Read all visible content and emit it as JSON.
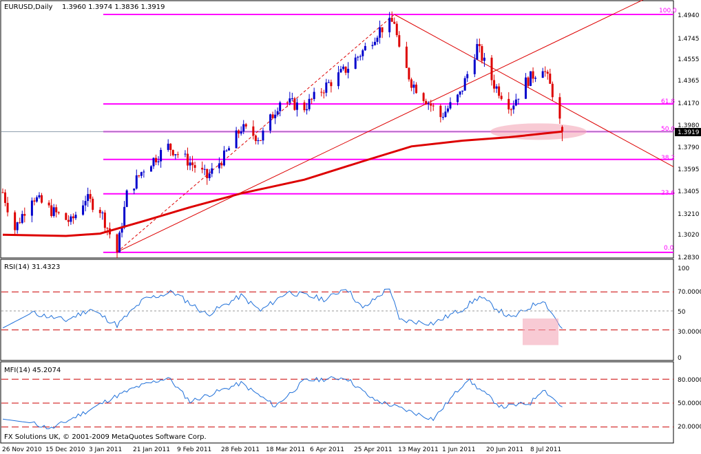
{
  "header": {
    "symbol_text": "EURUSD,Daily",
    "ohlc_text": "1.3960 1.3974 1.3836 1.3919"
  },
  "price_panel": {
    "y_ticks": [
      "1.4940",
      "1.4745",
      "1.4555",
      "1.4365",
      "1.4170",
      "1.3980",
      "1.3790",
      "1.3595",
      "1.3405",
      "1.3210",
      "1.3020",
      "1.2830"
    ],
    "current_price_label": "1.3919",
    "fib_labels": [
      "100.0",
      "61.8",
      "50.0",
      "38.2",
      "23.6",
      "0.0"
    ]
  },
  "rsi_panel": {
    "title": "RSI(14) 31.4323",
    "y_ticks": [
      "100",
      "70.0000",
      "50",
      "30.0000",
      "0"
    ]
  },
  "mfi_panel": {
    "title": "MFI(14) 45.2074",
    "y_ticks": [
      "80.0000",
      "50.0000",
      "20.0000"
    ],
    "copyright": "FX Solutions UK, © 2001-2009 MetaQuotes Software Corp."
  },
  "x_axis": {
    "labels": [
      "26 Nov 2010",
      "15 Dec 2010",
      "3 Jan 2011",
      "21 Jan 2011",
      "9 Feb 2011",
      "28 Feb 2011",
      "18 Mar 2011",
      "6 Apr 2011",
      "25 Apr 2011",
      "13 May 2011",
      "1 Jun 2011",
      "20 Jun 2011",
      "8 Jul 2011"
    ]
  },
  "colors": {
    "bull_candle": "#0000cc",
    "bear_candle": "#dd0000",
    "ma_line": "#dd0000",
    "fib_lines": "#ff00ff",
    "oscillator_line": "#1e6fd9",
    "level_lines": "#cc0000",
    "highlight_zone": "#f4a6b8"
  },
  "chart_data": [
    {
      "type": "candlestick",
      "title": "EURUSD,Daily",
      "ohlc_last": {
        "open": 1.396,
        "high": 1.3974,
        "low": 1.3836,
        "close": 1.3919
      },
      "ylim": [
        1.283,
        1.494
      ],
      "x_start": "2010-11-24",
      "x_end": "2011-07-13",
      "fibonacci_levels": [
        {
          "label": "100.0",
          "price": 1.494
        },
        {
          "label": "61.8",
          "price": 1.416
        },
        {
          "label": "50.0",
          "price": 1.3919
        },
        {
          "label": "38.2",
          "price": 1.3677
        },
        {
          "label": "23.6",
          "price": 1.3377
        },
        {
          "label": "0.0",
          "price": 1.2867
        }
      ],
      "close_path": [
        {
          "date": "2010-11-24",
          "close": 1.339
        },
        {
          "date": "2010-11-29",
          "close": 1.307
        },
        {
          "date": "2010-12-06",
          "close": 1.336
        },
        {
          "date": "2010-12-14",
          "close": 1.323
        },
        {
          "date": "2010-12-22",
          "close": 1.313
        },
        {
          "date": "2010-12-28",
          "close": 1.334
        },
        {
          "date": "2011-01-03",
          "close": 1.324
        },
        {
          "date": "2011-01-10",
          "close": 1.287
        },
        {
          "date": "2011-01-14",
          "close": 1.337
        },
        {
          "date": "2011-01-21",
          "close": 1.36
        },
        {
          "date": "2011-01-31",
          "close": 1.379
        },
        {
          "date": "2011-02-09",
          "close": 1.365
        },
        {
          "date": "2011-02-16",
          "close": 1.352
        },
        {
          "date": "2011-02-23",
          "close": 1.37
        },
        {
          "date": "2011-03-02",
          "close": 1.395
        },
        {
          "date": "2011-03-10",
          "close": 1.386
        },
        {
          "date": "2011-03-18",
          "close": 1.419
        },
        {
          "date": "2011-03-28",
          "close": 1.413
        },
        {
          "date": "2011-04-06",
          "close": 1.432
        },
        {
          "date": "2011-04-14",
          "close": 1.446
        },
        {
          "date": "2011-04-21",
          "close": 1.462
        },
        {
          "date": "2011-04-28",
          "close": 1.481
        },
        {
          "date": "2011-05-04",
          "close": 1.488
        },
        {
          "date": "2011-05-06",
          "close": 1.461
        },
        {
          "date": "2011-05-11",
          "close": 1.435
        },
        {
          "date": "2011-05-23",
          "close": 1.405
        },
        {
          "date": "2011-05-31",
          "close": 1.424
        },
        {
          "date": "2011-06-07",
          "close": 1.466
        },
        {
          "date": "2011-06-14",
          "close": 1.433
        },
        {
          "date": "2011-06-21",
          "close": 1.414
        },
        {
          "date": "2011-06-27",
          "close": 1.435
        },
        {
          "date": "2011-07-04",
          "close": 1.449
        },
        {
          "date": "2011-07-08",
          "close": 1.426
        },
        {
          "date": "2011-07-12",
          "close": 1.3919
        }
      ],
      "moving_average_path": [
        {
          "date": "2010-11-24",
          "value": 1.302
        },
        {
          "date": "2010-12-20",
          "value": 1.301
        },
        {
          "date": "2011-01-03",
          "value": 1.303
        },
        {
          "date": "2011-01-21",
          "value": 1.314
        },
        {
          "date": "2011-02-09",
          "value": 1.326
        },
        {
          "date": "2011-03-02",
          "value": 1.338
        },
        {
          "date": "2011-03-28",
          "value": 1.35
        },
        {
          "date": "2011-04-21",
          "value": 1.366
        },
        {
          "date": "2011-05-11",
          "value": 1.379
        },
        {
          "date": "2011-06-01",
          "value": 1.384
        },
        {
          "date": "2011-06-20",
          "value": 1.387
        },
        {
          "date": "2011-07-12",
          "value": 1.3919
        }
      ],
      "trendlines": [
        {
          "from": {
            "date": "2011-01-10",
            "price": 1.287
          },
          "to": {
            "date": "2011-07-13",
            "price": 1.474
          }
        },
        {
          "from": {
            "date": "2011-05-04",
            "price": 1.494
          },
          "to": {
            "date": "2011-07-13",
            "price": 1.413
          }
        },
        {
          "from": {
            "date": "2011-01-10",
            "price": 1.287
          },
          "to": {
            "date": "2011-05-04",
            "price": 1.494
          }
        }
      ]
    },
    {
      "type": "line",
      "title": "RSI(14) 31.4323",
      "ylim": [
        0,
        100
      ],
      "levels": [
        70,
        30
      ],
      "series": [
        {
          "values": [
            {
              "date": "2010-11-24",
              "value": 32
            },
            {
              "date": "2010-12-06",
              "value": 48
            },
            {
              "date": "2010-12-20",
              "value": 40
            },
            {
              "date": "2010-12-30",
              "value": 52
            },
            {
              "date": "2011-01-10",
              "value": 35
            },
            {
              "date": "2011-01-21",
              "value": 62
            },
            {
              "date": "2011-02-02",
              "value": 70
            },
            {
              "date": "2011-02-16",
              "value": 46
            },
            {
              "date": "2011-03-02",
              "value": 66
            },
            {
              "date": "2011-03-10",
              "value": 50
            },
            {
              "date": "2011-03-21",
              "value": 70
            },
            {
              "date": "2011-04-06",
              "value": 62
            },
            {
              "date": "2011-04-14",
              "value": 75
            },
            {
              "date": "2011-04-21",
              "value": 52
            },
            {
              "date": "2011-05-02",
              "value": 75
            },
            {
              "date": "2011-05-06",
              "value": 40
            },
            {
              "date": "2011-05-20",
              "value": 37
            },
            {
              "date": "2011-06-01",
              "value": 52
            },
            {
              "date": "2011-06-08",
              "value": 65
            },
            {
              "date": "2011-06-21",
              "value": 42
            },
            {
              "date": "2011-07-04",
              "value": 62
            },
            {
              "date": "2011-07-12",
              "value": 31.4323
            }
          ]
        }
      ]
    },
    {
      "type": "line",
      "title": "MFI(14) 45.2074",
      "ylim": [
        0,
        100
      ],
      "levels": [
        80,
        50,
        20
      ],
      "series": [
        {
          "values": [
            {
              "date": "2010-11-24",
              "value": 30
            },
            {
              "date": "2010-12-06",
              "value": 25
            },
            {
              "date": "2010-12-14",
              "value": 18
            },
            {
              "date": "2010-12-30",
              "value": 42
            },
            {
              "date": "2011-01-07",
              "value": 55
            },
            {
              "date": "2011-01-18",
              "value": 70
            },
            {
              "date": "2011-01-31",
              "value": 82
            },
            {
              "date": "2011-02-09",
              "value": 52
            },
            {
              "date": "2011-03-02",
              "value": 75
            },
            {
              "date": "2011-03-16",
              "value": 46
            },
            {
              "date": "2011-03-28",
              "value": 78
            },
            {
              "date": "2011-04-14",
              "value": 82
            },
            {
              "date": "2011-04-25",
              "value": 55
            },
            {
              "date": "2011-05-10",
              "value": 40
            },
            {
              "date": "2011-05-20",
              "value": 30
            },
            {
              "date": "2011-06-03",
              "value": 80
            },
            {
              "date": "2011-06-17",
              "value": 45
            },
            {
              "date": "2011-06-29",
              "value": 50
            },
            {
              "date": "2011-07-04",
              "value": 68
            },
            {
              "date": "2011-07-12",
              "value": 45.2074
            }
          ]
        }
      ]
    }
  ]
}
